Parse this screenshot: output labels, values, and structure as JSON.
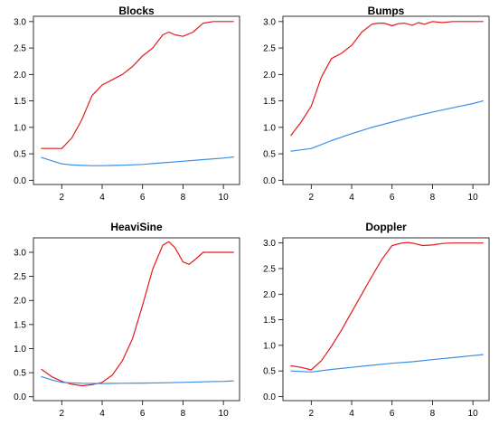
{
  "chart_data": [
    {
      "type": "line",
      "title": "Blocks",
      "xlabel": "",
      "ylabel": "",
      "xlim": [
        0.6,
        10.8
      ],
      "ylim": [
        -0.08,
        3.1
      ],
      "xticks": [
        "2",
        "4",
        "6",
        "8",
        "10"
      ],
      "yticks": [
        "0.0",
        "0.5",
        "1.0",
        "1.5",
        "2.0",
        "2.5",
        "3.0"
      ],
      "series": [
        {
          "color": "#e41a1c",
          "x": [
            1,
            1.5,
            2,
            2.5,
            3,
            3.5,
            4,
            4.5,
            5,
            5.5,
            6,
            6.5,
            7,
            7.3,
            7.6,
            8,
            8.5,
            9,
            9.5,
            10,
            10.5
          ],
          "y": [
            0.6,
            0.6,
            0.6,
            0.8,
            1.15,
            1.6,
            1.8,
            1.9,
            2.0,
            2.15,
            2.35,
            2.5,
            2.75,
            2.8,
            2.75,
            2.72,
            2.8,
            2.97,
            3.0,
            3.0,
            3.0
          ]
        },
        {
          "color": "#3a8ee6",
          "x": [
            1,
            1.5,
            2,
            2.5,
            3,
            3.5,
            4,
            5,
            6,
            7,
            8,
            9,
            10,
            10.5
          ],
          "y": [
            0.43,
            0.37,
            0.31,
            0.29,
            0.28,
            0.275,
            0.275,
            0.285,
            0.3,
            0.33,
            0.36,
            0.39,
            0.42,
            0.44
          ]
        }
      ]
    },
    {
      "type": "line",
      "title": "Bumps",
      "xlabel": "",
      "ylabel": "",
      "xlim": [
        0.6,
        10.8
      ],
      "ylim": [
        -0.08,
        3.1
      ],
      "xticks": [
        "2",
        "4",
        "6",
        "8",
        "10"
      ],
      "yticks": [
        "0.0",
        "0.5",
        "1.0",
        "1.5",
        "2.0",
        "2.5",
        "3.0"
      ],
      "series": [
        {
          "color": "#e41a1c",
          "x": [
            1,
            1.5,
            2,
            2.5,
            3,
            3.5,
            4,
            4.5,
            5,
            5.3,
            5.6,
            6,
            6.3,
            6.6,
            7,
            7.3,
            7.6,
            8,
            8.5,
            9,
            9.5,
            10,
            10.5
          ],
          "y": [
            0.85,
            1.1,
            1.4,
            1.95,
            2.3,
            2.4,
            2.55,
            2.8,
            2.95,
            2.97,
            2.97,
            2.92,
            2.96,
            2.97,
            2.93,
            2.98,
            2.95,
            3.0,
            2.98,
            3.0,
            3.0,
            3.0,
            3.0
          ]
        },
        {
          "color": "#3a8ee6",
          "x": [
            1,
            2,
            3,
            4,
            5,
            6,
            7,
            8,
            9,
            10,
            10.5
          ],
          "y": [
            0.55,
            0.6,
            0.75,
            0.88,
            1.0,
            1.1,
            1.2,
            1.29,
            1.37,
            1.45,
            1.5
          ]
        }
      ]
    },
    {
      "type": "line",
      "title": "HeaviSine",
      "xlabel": "",
      "ylabel": "",
      "xlim": [
        0.6,
        10.8
      ],
      "ylim": [
        -0.08,
        3.3
      ],
      "xticks": [
        "2",
        "4",
        "6",
        "8",
        "10"
      ],
      "yticks": [
        "0.0",
        "0.5",
        "1.0",
        "1.5",
        "2.0",
        "2.5",
        "3.0"
      ],
      "series": [
        {
          "color": "#e41a1c",
          "x": [
            1,
            1.5,
            2,
            2.5,
            3,
            3.5,
            4,
            4.5,
            5,
            5.5,
            6,
            6.5,
            7,
            7.3,
            7.6,
            8,
            8.3,
            8.6,
            9,
            9.5,
            10,
            10.5
          ],
          "y": [
            0.57,
            0.42,
            0.32,
            0.26,
            0.23,
            0.25,
            0.3,
            0.45,
            0.75,
            1.2,
            1.9,
            2.65,
            3.15,
            3.22,
            3.1,
            2.8,
            2.75,
            2.85,
            3.0,
            3.0,
            3.0,
            3.0
          ]
        },
        {
          "color": "#3a8ee6",
          "x": [
            1,
            1.5,
            2,
            3,
            4,
            5,
            6,
            7,
            8,
            9,
            10,
            10.5
          ],
          "y": [
            0.42,
            0.35,
            0.3,
            0.28,
            0.275,
            0.28,
            0.285,
            0.29,
            0.3,
            0.31,
            0.32,
            0.33
          ]
        }
      ]
    },
    {
      "type": "line",
      "title": "Doppler",
      "xlabel": "",
      "ylabel": "",
      "xlim": [
        0.6,
        10.8
      ],
      "ylim": [
        -0.08,
        3.1
      ],
      "xticks": [
        "2",
        "4",
        "6",
        "8",
        "10"
      ],
      "yticks": [
        "0.0",
        "0.5",
        "1.0",
        "1.5",
        "2.0",
        "2.5",
        "3.0"
      ],
      "series": [
        {
          "color": "#e41a1c",
          "x": [
            1,
            1.5,
            2,
            2.5,
            3,
            3.5,
            4,
            4.5,
            5,
            5.5,
            6,
            6.5,
            6.8,
            7.1,
            7.5,
            8,
            8.5,
            9,
            9.5,
            10,
            10.5
          ],
          "y": [
            0.6,
            0.57,
            0.52,
            0.7,
            0.98,
            1.3,
            1.65,
            2.0,
            2.35,
            2.68,
            2.95,
            3.0,
            3.01,
            2.99,
            2.95,
            2.96,
            2.99,
            3.0,
            3.0,
            3.0,
            3.0
          ]
        },
        {
          "color": "#3a8ee6",
          "x": [
            1,
            2,
            3,
            4,
            5,
            6,
            7,
            8,
            9,
            10,
            10.5
          ],
          "y": [
            0.5,
            0.48,
            0.53,
            0.57,
            0.61,
            0.65,
            0.68,
            0.72,
            0.76,
            0.8,
            0.82
          ]
        }
      ]
    }
  ]
}
